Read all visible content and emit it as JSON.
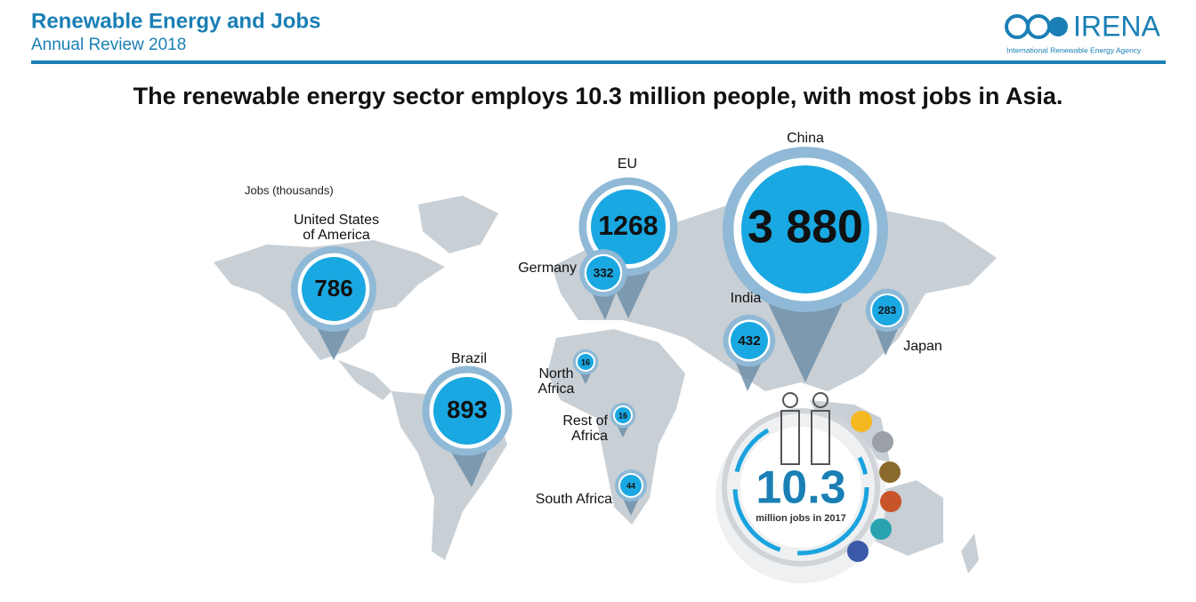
{
  "header": {
    "title": "Renewable Energy and Jobs",
    "subtitle": "Annual Review 2018",
    "logo": "IRENA",
    "logo_caption": "International Renewable Energy Agency"
  },
  "headline": "The renewable energy sector employs 10.3 million people, with most jobs in Asia.",
  "unit_note": "Jobs (thousands)",
  "regions": [
    {
      "label": [
        "United States",
        "of America"
      ],
      "value": "786"
    },
    {
      "label": [
        "Brazil"
      ],
      "value": "893"
    },
    {
      "label": [
        "EU"
      ],
      "value": "1268"
    },
    {
      "label": [
        "Germany"
      ],
      "value": "332"
    },
    {
      "label": [
        "China"
      ],
      "value": "3 880"
    },
    {
      "label": [
        "India"
      ],
      "value": "432"
    },
    {
      "label": [
        "Japan"
      ],
      "value": "283"
    },
    {
      "label": [
        "North",
        "Africa"
      ],
      "value": "16"
    },
    {
      "label": [
        "Rest of",
        "Africa"
      ],
      "value": "16"
    },
    {
      "label": [
        "South Africa"
      ],
      "value": "44"
    }
  ],
  "total": {
    "value": "10.3",
    "caption": "million jobs in 2017"
  }
}
